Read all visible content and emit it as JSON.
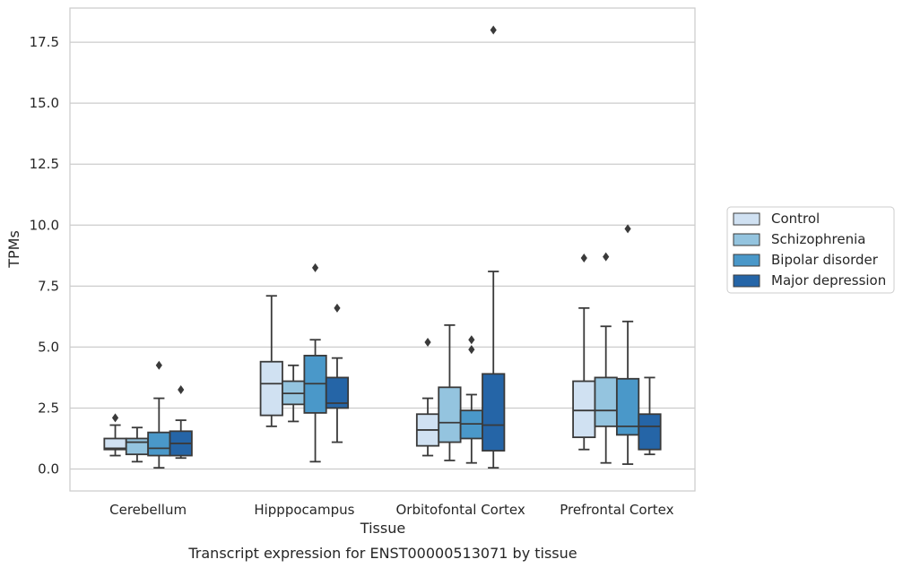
{
  "chart_data": {
    "type": "box",
    "xlabel": "Tissue",
    "ylabel": "TPMs",
    "caption": "Transcript expression for ENST00000513071 by tissue",
    "ylim": [
      -0.9,
      18.9
    ],
    "yticks": [
      "0.0",
      "2.5",
      "5.0",
      "7.5",
      "10.0",
      "12.5",
      "15.0",
      "17.5"
    ],
    "grid": "horizontal",
    "legend_position": "right",
    "categories": [
      "Cerebellum",
      "Hipppocampus",
      "Orbitofontal Cortex",
      "Prefrontal Cortex"
    ],
    "series": [
      {
        "name": "Control",
        "color": "#d0e1f2",
        "boxes": [
          {
            "whisker_low": 0.55,
            "q1": 0.8,
            "median": 0.85,
            "q3": 1.25,
            "whisker_high": 1.8,
            "outliers": [
              2.1
            ]
          },
          {
            "whisker_low": 1.75,
            "q1": 2.2,
            "median": 3.5,
            "q3": 4.4,
            "whisker_high": 7.1,
            "outliers": []
          },
          {
            "whisker_low": 0.55,
            "q1": 0.95,
            "median": 1.6,
            "q3": 2.25,
            "whisker_high": 2.9,
            "outliers": [
              5.2
            ]
          },
          {
            "whisker_low": 0.8,
            "q1": 1.3,
            "median": 2.4,
            "q3": 3.6,
            "whisker_high": 6.6,
            "outliers": [
              8.65
            ]
          }
        ]
      },
      {
        "name": "Schizophrenia",
        "color": "#94c4df",
        "boxes": [
          {
            "whisker_low": 0.3,
            "q1": 0.6,
            "median": 1.1,
            "q3": 1.25,
            "whisker_high": 1.7,
            "outliers": []
          },
          {
            "whisker_low": 1.95,
            "q1": 2.65,
            "median": 3.1,
            "q3": 3.6,
            "whisker_high": 4.25,
            "outliers": []
          },
          {
            "whisker_low": 0.35,
            "q1": 1.1,
            "median": 1.9,
            "q3": 3.35,
            "whisker_high": 5.9,
            "outliers": []
          },
          {
            "whisker_low": 0.25,
            "q1": 1.75,
            "median": 2.4,
            "q3": 3.75,
            "whisker_high": 5.85,
            "outliers": [
              8.7
            ]
          }
        ]
      },
      {
        "name": "Bipolar disorder",
        "color": "#4a98c9",
        "boxes": [
          {
            "whisker_low": 0.05,
            "q1": 0.55,
            "median": 0.85,
            "q3": 1.5,
            "whisker_high": 2.9,
            "outliers": [
              4.25
            ]
          },
          {
            "whisker_low": 0.3,
            "q1": 2.3,
            "median": 3.5,
            "q3": 4.65,
            "whisker_high": 5.3,
            "outliers": [
              8.25
            ]
          },
          {
            "whisker_low": 0.25,
            "q1": 1.25,
            "median": 1.85,
            "q3": 2.4,
            "whisker_high": 3.05,
            "outliers": [
              4.9,
              5.3
            ]
          },
          {
            "whisker_low": 0.2,
            "q1": 1.4,
            "median": 1.75,
            "q3": 3.7,
            "whisker_high": 6.05,
            "outliers": [
              9.85
            ]
          }
        ]
      },
      {
        "name": "Major depression",
        "color": "#2565a7",
        "boxes": [
          {
            "whisker_low": 0.45,
            "q1": 0.55,
            "median": 1.05,
            "q3": 1.55,
            "whisker_high": 2.0,
            "outliers": [
              3.25
            ]
          },
          {
            "whisker_low": 1.1,
            "q1": 2.5,
            "median": 2.7,
            "q3": 3.75,
            "whisker_high": 4.55,
            "outliers": [
              6.6
            ]
          },
          {
            "whisker_low": 0.05,
            "q1": 0.75,
            "median": 1.8,
            "q3": 3.9,
            "whisker_high": 8.1,
            "outliers": [
              18.0
            ]
          },
          {
            "whisker_low": 0.6,
            "q1": 0.8,
            "median": 1.75,
            "q3": 2.25,
            "whisker_high": 3.75,
            "outliers": []
          }
        ]
      }
    ]
  }
}
